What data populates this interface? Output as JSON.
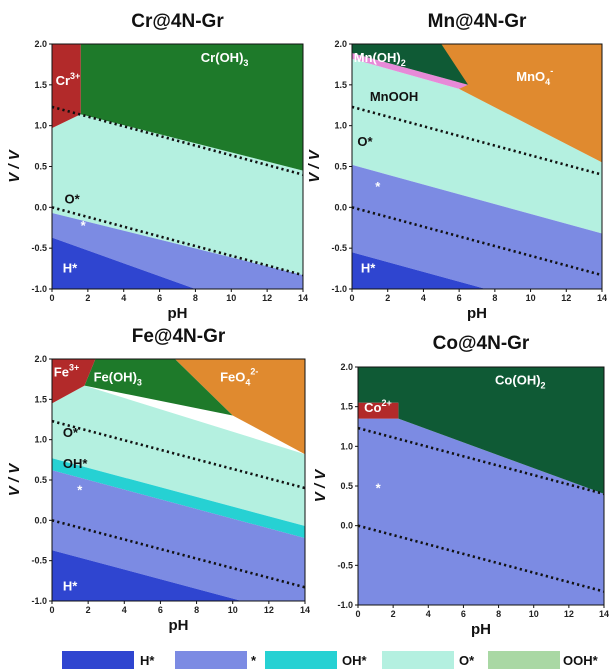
{
  "legend": [
    {
      "label": "H*",
      "color": "#2f45d0"
    },
    {
      "label": "*",
      "color": "#7c8be3"
    },
    {
      "label": "OH*",
      "color": "#26d1d3"
    },
    {
      "label": "O*",
      "color": "#b4f0e0"
    },
    {
      "label": "OOH*",
      "color": "#a9d8a4"
    }
  ],
  "colors": {
    "H*": "#2f45d0",
    "*": "#7c8be3",
    "OH*": "#26d1d3",
    "O*": "#b4f0e0",
    "OOH*": "#a9d8a4",
    "hydroxide": "#1e7a2a",
    "hydroxide_dark": "#0f5a35",
    "oxyanion": "#e08a2f",
    "cation": "#b22a2a",
    "mnooh": "#e78ad8"
  },
  "chart_data": [
    {
      "type": "area",
      "title": "Cr@4N-Gr",
      "xlabel": "pH",
      "ylabel": "V / V",
      "xlim": [
        0,
        14
      ],
      "ylim": [
        -1.0,
        2.0
      ],
      "xticks": [
        "0",
        "2",
        "4",
        "6",
        "8",
        "10",
        "12",
        "14"
      ],
      "yticks": [
        "-1.0",
        "-0.5",
        "0.0",
        "0.5",
        "1.0",
        "1.5",
        "2.0"
      ],
      "dotted_lines": [
        {
          "x": [
            0,
            14
          ],
          "y": [
            1.23,
            0.4
          ]
        },
        {
          "x": [
            0,
            14
          ],
          "y": [
            0.0,
            -0.83
          ]
        }
      ],
      "regions": [
        {
          "key": "O*",
          "polygon": [
            [
              0,
              0.97
            ],
            [
              1.6,
              1.14
            ],
            [
              14,
              0.45
            ],
            [
              14,
              -0.83
            ],
            [
              0,
              -0.07
            ]
          ]
        },
        {
          "key": "*",
          "polygon": [
            [
              0,
              -0.07
            ],
            [
              14,
              -0.83
            ],
            [
              14,
              -1.0
            ],
            [
              8,
              -1.0
            ],
            [
              0,
              -0.37
            ]
          ]
        },
        {
          "key": "H*",
          "polygon": [
            [
              0,
              -0.37
            ],
            [
              8,
              -1.0
            ],
            [
              0,
              -1.0
            ]
          ]
        },
        {
          "key": "hydroxide",
          "polygon": [
            [
              1.6,
              2.0
            ],
            [
              14,
              2.0
            ],
            [
              14,
              0.45
            ],
            [
              1.6,
              1.14
            ]
          ]
        },
        {
          "key": "cation",
          "polygon": [
            [
              0,
              2.0
            ],
            [
              1.6,
              2.0
            ],
            [
              1.6,
              1.14
            ],
            [
              0,
              0.97
            ]
          ]
        }
      ],
      "labels": [
        {
          "text": "Cr",
          "sup": "3+",
          "x": 0.2,
          "y": 1.5,
          "color": "#ffffff"
        },
        {
          "text": "Cr(OH)",
          "sub": "3",
          "x": 8.3,
          "y": 1.78,
          "color": "#ffffff"
        },
        {
          "text": "O*",
          "x": 0.7,
          "y": 0.05,
          "color": "#111111"
        },
        {
          "text": "*",
          "x": 1.6,
          "y": -0.28,
          "color": "#ffffff"
        },
        {
          "text": "H*",
          "x": 0.6,
          "y": -0.8,
          "color": "#ffffff"
        }
      ]
    },
    {
      "type": "area",
      "title": "Mn@4N-Gr",
      "xlabel": "pH",
      "ylabel": "V / V",
      "xlim": [
        0,
        14
      ],
      "ylim": [
        -1.0,
        2.0
      ],
      "xticks": [
        "0",
        "2",
        "4",
        "6",
        "8",
        "10",
        "12",
        "14"
      ],
      "yticks": [
        "-1.0",
        "-0.5",
        "0.0",
        "0.5",
        "1.0",
        "1.5",
        "2.0"
      ],
      "dotted_lines": [
        {
          "x": [
            0,
            14
          ],
          "y": [
            1.23,
            0.4
          ]
        },
        {
          "x": [
            0,
            14
          ],
          "y": [
            0.0,
            -0.83
          ]
        }
      ],
      "regions": [
        {
          "key": "O*",
          "polygon": [
            [
              0,
              1.82
            ],
            [
              6,
              1.45
            ],
            [
              14,
              0.55
            ],
            [
              14,
              -0.32
            ],
            [
              0,
              0.52
            ]
          ]
        },
        {
          "key": "*",
          "polygon": [
            [
              0,
              0.52
            ],
            [
              14,
              -0.32
            ],
            [
              14,
              -1.0
            ],
            [
              7.5,
              -1.0
            ],
            [
              0,
              -0.55
            ]
          ]
        },
        {
          "key": "H*",
          "polygon": [
            [
              0,
              -0.55
            ],
            [
              7.5,
              -1.0
            ],
            [
              0,
              -1.0
            ]
          ]
        },
        {
          "key": "oxyanion",
          "polygon": [
            [
              5,
              2.0
            ],
            [
              14,
              2.0
            ],
            [
              14,
              0.55
            ],
            [
              6,
              1.45
            ]
          ]
        },
        {
          "key": "mnooh",
          "polygon": [
            [
              0,
              1.82
            ],
            [
              6,
              1.45
            ],
            [
              6.5,
              1.5
            ],
            [
              0,
              1.89
            ]
          ]
        },
        {
          "key": "hydroxide_dark",
          "polygon": [
            [
              0,
              2.0
            ],
            [
              5,
              2.0
            ],
            [
              6.5,
              1.5
            ],
            [
              0,
              1.89
            ]
          ]
        }
      ],
      "labels": [
        {
          "text": "Mn(OH)",
          "sub": "2",
          "x": 0.1,
          "y": 1.78,
          "color": "#ffffff"
        },
        {
          "text": "MnOOH",
          "x": 1.0,
          "y": 1.3,
          "color": "#111111"
        },
        {
          "text": "MnO",
          "sub": "4",
          "sup": "-",
          "x": 9.2,
          "y": 1.55,
          "color": "#ffffff"
        },
        {
          "text": "O*",
          "x": 0.3,
          "y": 0.75,
          "color": "#111111"
        },
        {
          "text": "*",
          "x": 1.3,
          "y": 0.2,
          "color": "#ffffff"
        },
        {
          "text": "H*",
          "x": 0.5,
          "y": -0.8,
          "color": "#ffffff"
        }
      ]
    },
    {
      "type": "area",
      "title": "Fe@4N-Gr",
      "xlabel": "pH",
      "ylabel": "V / V",
      "xlim": [
        0,
        14
      ],
      "ylim": [
        -1.0,
        2.0
      ],
      "xticks": [
        "0",
        "2",
        "4",
        "6",
        "8",
        "10",
        "12",
        "14"
      ],
      "yticks": [
        "-1.0",
        "-0.5",
        "0.0",
        "0.5",
        "1.0",
        "1.5",
        "2.0"
      ],
      "dotted_lines": [
        {
          "x": [
            0,
            14
          ],
          "y": [
            1.23,
            0.4
          ]
        },
        {
          "x": [
            0,
            14
          ],
          "y": [
            0.0,
            -0.83
          ]
        }
      ],
      "regions": [
        {
          "key": "O*",
          "polygon": [
            [
              0,
              1.45
            ],
            [
              1.8,
              1.67
            ],
            [
              14,
              0.82
            ],
            [
              14,
              -0.07
            ],
            [
              0,
              0.77
            ]
          ]
        },
        {
          "key": "OH*",
          "polygon": [
            [
              0,
              0.77
            ],
            [
              14,
              -0.07
            ],
            [
              14,
              -0.22
            ],
            [
              0,
              0.62
            ]
          ]
        },
        {
          "key": "*",
          "polygon": [
            [
              0,
              0.62
            ],
            [
              14,
              -0.22
            ],
            [
              14,
              -1.0
            ],
            [
              10.5,
              -1.0
            ],
            [
              0,
              -0.37
            ]
          ]
        },
        {
          "key": "H*",
          "polygon": [
            [
              0,
              -0.37
            ],
            [
              10.5,
              -1.0
            ],
            [
              0,
              -1.0
            ]
          ]
        },
        {
          "key": "oxyanion",
          "polygon": [
            [
              6.8,
              2.0
            ],
            [
              14,
              2.0
            ],
            [
              14,
              0.82
            ],
            [
              10,
              1.3
            ]
          ]
        },
        {
          "key": "hydroxide",
          "polygon": [
            [
              2.4,
              2.0
            ],
            [
              6.8,
              2.0
            ],
            [
              10,
              1.3
            ],
            [
              1.8,
              1.67
            ]
          ]
        },
        {
          "key": "cation",
          "polygon": [
            [
              0,
              2.0
            ],
            [
              2.4,
              2.0
            ],
            [
              1.8,
              1.67
            ],
            [
              0,
              1.45
            ]
          ]
        }
      ],
      "labels": [
        {
          "text": "Fe",
          "sup": "3+",
          "x": 0.1,
          "y": 1.78,
          "color": "#ffffff"
        },
        {
          "text": "Fe(OH)",
          "sub": "3",
          "x": 2.3,
          "y": 1.72,
          "color": "#ffffff"
        },
        {
          "text": "FeO",
          "sub": "4",
          "sup": "2-",
          "x": 9.3,
          "y": 1.72,
          "color": "#ffffff"
        },
        {
          "text": "O*",
          "x": 0.6,
          "y": 1.03,
          "color": "#111111"
        },
        {
          "text": "OH*",
          "x": 0.6,
          "y": 0.65,
          "color": "#111111"
        },
        {
          "text": "*",
          "x": 1.4,
          "y": 0.32,
          "color": "#ffffff"
        },
        {
          "text": "H*",
          "x": 0.6,
          "y": -0.87,
          "color": "#ffffff"
        }
      ]
    },
    {
      "type": "area",
      "title": "Co@4N-Gr",
      "xlabel": "pH",
      "ylabel": "V / V",
      "xlim": [
        0,
        14
      ],
      "ylim": [
        -1.0,
        2.0
      ],
      "xticks": [
        "0",
        "2",
        "4",
        "6",
        "8",
        "10",
        "12",
        "14"
      ],
      "yticks": [
        "-1.0",
        "-0.5",
        "0.0",
        "0.5",
        "1.0",
        "1.5",
        "2.0"
      ],
      "dotted_lines": [
        {
          "x": [
            0,
            14
          ],
          "y": [
            1.23,
            0.4
          ]
        },
        {
          "x": [
            0,
            14
          ],
          "y": [
            0.0,
            -0.83
          ]
        }
      ],
      "regions": [
        {
          "key": "*",
          "polygon": [
            [
              0,
              1.35
            ],
            [
              2.3,
              1.35
            ],
            [
              14,
              0.4
            ],
            [
              14,
              -1.0
            ],
            [
              0,
              -1.0
            ]
          ]
        },
        {
          "key": "hydroxide_dark",
          "polygon": [
            [
              0,
              2.0
            ],
            [
              14,
              2.0
            ],
            [
              14,
              0.4
            ],
            [
              2.3,
              1.35
            ],
            [
              2.3,
              1.55
            ],
            [
              0,
              1.55
            ]
          ]
        },
        {
          "key": "cation",
          "polygon": [
            [
              0,
              1.55
            ],
            [
              2.3,
              1.55
            ],
            [
              2.3,
              1.35
            ],
            [
              0,
              1.35
            ]
          ]
        }
      ],
      "labels": [
        {
          "text": "Co",
          "sup": "2+",
          "x": 0.35,
          "y": 1.43,
          "color": "#ffffff"
        },
        {
          "text": "Co(OH)",
          "sub": "2",
          "x": 7.8,
          "y": 1.78,
          "color": "#ffffff"
        },
        {
          "text": "*",
          "x": 1.0,
          "y": 0.42,
          "color": "#ffffff"
        }
      ]
    }
  ]
}
